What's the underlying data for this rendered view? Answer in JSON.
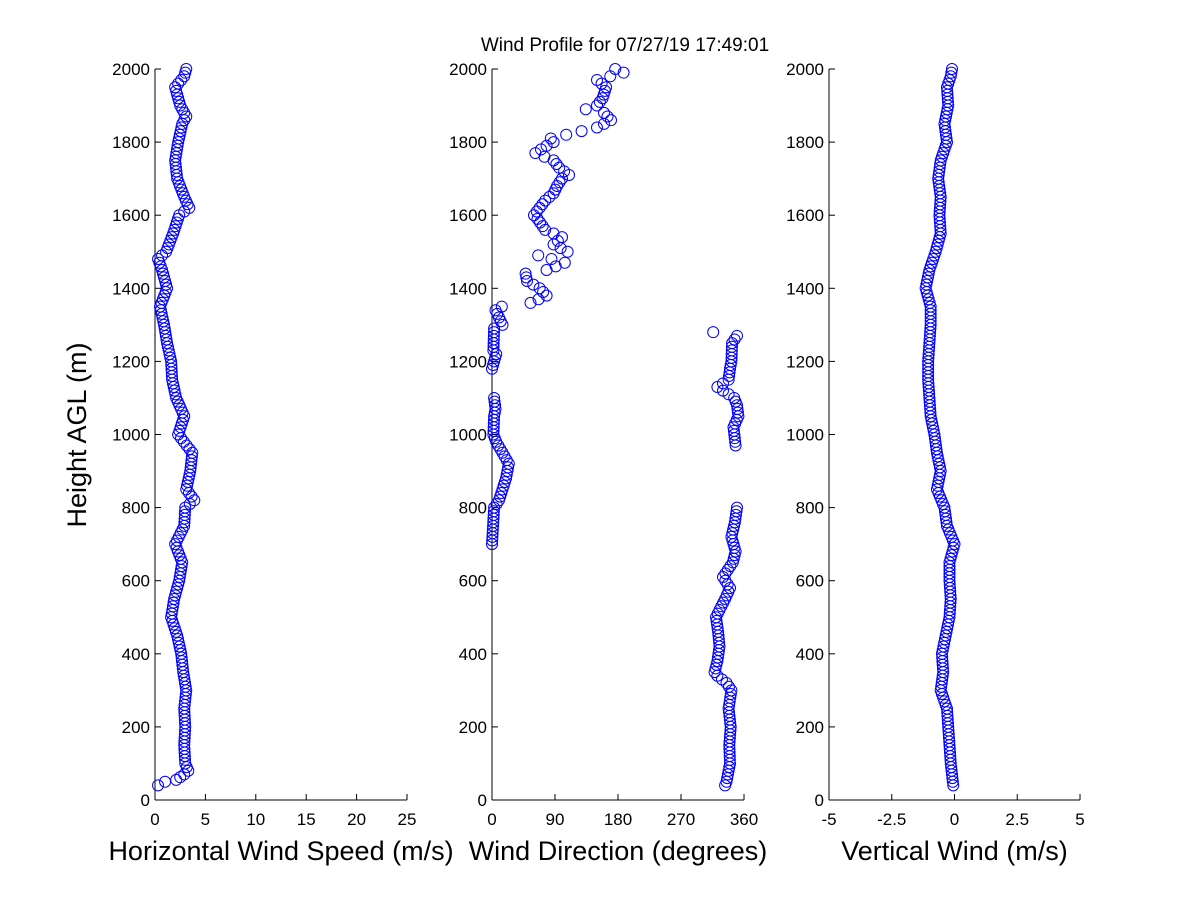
{
  "figure": {
    "title": "Wind Profile for  07/27/19 17:49:01",
    "colors": {
      "marker": "#0000ff",
      "axis": "#000000",
      "background": "#ffffff"
    }
  },
  "chart_data": [
    {
      "type": "scatter",
      "xlabel": "Horizontal Wind Speed (m/s)",
      "ylabel": "Height AGL (m)",
      "xlim": [
        0,
        25
      ],
      "ylim": [
        0,
        2000
      ],
      "xticks": [
        0,
        5,
        10,
        15,
        20,
        25
      ],
      "xtick_labels": [
        "0",
        "5",
        "10",
        "15",
        "20",
        "25"
      ],
      "yticks": [
        0,
        200,
        400,
        600,
        800,
        1000,
        1200,
        1400,
        1600,
        1800,
        2000
      ],
      "ytick_labels": [
        "0",
        "200",
        "400",
        "600",
        "800",
        "1000",
        "1200",
        "1400",
        "1600",
        "1800",
        "2000"
      ],
      "grid": false,
      "marker": "open-circle",
      "profile": [
        [
          40,
          0.3
        ],
        [
          50,
          1.0
        ],
        [
          55,
          2.1
        ],
        [
          70,
          2.9
        ],
        [
          80,
          3.3
        ],
        [
          100,
          3.0
        ],
        [
          150,
          2.9
        ],
        [
          200,
          3.0
        ],
        [
          250,
          2.9
        ],
        [
          300,
          3.1
        ],
        [
          350,
          2.8
        ],
        [
          400,
          2.6
        ],
        [
          450,
          2.2
        ],
        [
          500,
          1.6
        ],
        [
          550,
          1.9
        ],
        [
          600,
          2.4
        ],
        [
          650,
          2.7
        ],
        [
          700,
          2.0
        ],
        [
          750,
          2.9
        ],
        [
          800,
          3.0
        ],
        [
          820,
          3.9
        ],
        [
          850,
          3.1
        ],
        [
          900,
          3.5
        ],
        [
          950,
          3.7
        ],
        [
          1000,
          2.3
        ],
        [
          1050,
          2.9
        ],
        [
          1100,
          2.1
        ],
        [
          1150,
          1.7
        ],
        [
          1200,
          1.6
        ],
        [
          1250,
          1.2
        ],
        [
          1300,
          0.9
        ],
        [
          1350,
          0.5
        ],
        [
          1400,
          1.2
        ],
        [
          1450,
          0.7
        ],
        [
          1480,
          0.3
        ],
        [
          1500,
          1.1
        ],
        [
          1550,
          1.8
        ],
        [
          1600,
          2.4
        ],
        [
          1620,
          3.4
        ],
        [
          1650,
          2.9
        ],
        [
          1700,
          2.2
        ],
        [
          1750,
          2.0
        ],
        [
          1800,
          2.3
        ],
        [
          1850,
          2.7
        ],
        [
          1870,
          3.1
        ],
        [
          1900,
          2.5
        ],
        [
          1950,
          2.0
        ],
        [
          1980,
          2.9
        ],
        [
          2000,
          3.1
        ]
      ]
    },
    {
      "type": "scatter",
      "xlabel": "Wind Direction (degrees)",
      "ylabel": "",
      "xlim": [
        0,
        360
      ],
      "ylim": [
        0,
        2000
      ],
      "xticks": [
        0,
        90,
        180,
        270,
        360
      ],
      "xtick_labels": [
        "0",
        "90",
        "180",
        "270",
        "360"
      ],
      "yticks": [
        0,
        200,
        400,
        600,
        800,
        1000,
        1200,
        1400,
        1600,
        1800,
        2000
      ],
      "ytick_labels": [
        "0",
        "200",
        "400",
        "600",
        "800",
        "1000",
        "1200",
        "1400",
        "1600",
        "1800",
        "2000"
      ],
      "grid": false,
      "marker": "open-circle",
      "profile": [
        [
          40,
          333
        ],
        [
          50,
          335
        ],
        [
          100,
          340
        ],
        [
          150,
          339
        ],
        [
          200,
          341
        ],
        [
          250,
          338
        ],
        [
          300,
          342
        ],
        [
          320,
          335
        ],
        [
          340,
          322
        ],
        [
          350,
          318
        ],
        [
          380,
          322
        ],
        [
          420,
          325
        ],
        [
          460,
          323
        ],
        [
          500,
          320
        ],
        [
          520,
          325
        ],
        [
          550,
          333
        ],
        [
          580,
          340
        ],
        [
          610,
          330
        ],
        [
          650,
          344
        ],
        [
          680,
          348
        ],
        [
          700,
          345
        ],
        [
          720,
          342
        ],
        [
          760,
          347
        ],
        [
          800,
          350
        ]
      ],
      "profile_low_lobe": [
        [
          700,
          0
        ],
        [
          800,
          3
        ],
        [
          820,
          10
        ],
        [
          850,
          15
        ],
        [
          880,
          20
        ],
        [
          920,
          24
        ],
        [
          950,
          15
        ],
        [
          980,
          6
        ],
        [
          1000,
          2
        ],
        [
          1050,
          3
        ],
        [
          1070,
          5
        ],
        [
          1100,
          3
        ]
      ],
      "profile_mid_lobe": [
        [
          970,
          348
        ],
        [
          1020,
          345
        ],
        [
          1050,
          352
        ],
        [
          1080,
          350
        ],
        [
          1100,
          346
        ],
        [
          1130,
          322
        ],
        [
          1150,
          338
        ],
        [
          1180,
          340
        ],
        [
          1200,
          342
        ],
        [
          1250,
          343
        ],
        [
          1270,
          350
        ],
        [
          1280,
          316
        ]
      ],
      "profile_upper": [
        [
          1180,
          0
        ],
        [
          1220,
          6
        ],
        [
          1230,
          2
        ],
        [
          1290,
          3
        ],
        [
          1300,
          15
        ],
        [
          1320,
          10
        ],
        [
          1340,
          5
        ],
        [
          1350,
          14
        ],
        [
          1360,
          55
        ],
        [
          1380,
          78
        ],
        [
          1400,
          68
        ],
        [
          1420,
          50
        ],
        [
          1440,
          48
        ],
        [
          1450,
          78
        ],
        [
          1470,
          104
        ],
        [
          1490,
          66
        ],
        [
          1500,
          108
        ],
        [
          1520,
          88
        ],
        [
          1540,
          100
        ],
        [
          1560,
          76
        ],
        [
          1590,
          65
        ],
        [
          1600,
          60
        ],
        [
          1620,
          68
        ],
        [
          1640,
          76
        ],
        [
          1660,
          88
        ],
        [
          1680,
          93
        ],
        [
          1700,
          100
        ],
        [
          1710,
          110
        ],
        [
          1730,
          96
        ],
        [
          1750,
          88
        ],
        [
          1770,
          62
        ],
        [
          1790,
          78
        ],
        [
          1800,
          88
        ],
        [
          1810,
          84
        ],
        [
          1820,
          106
        ],
        [
          1840,
          150
        ],
        [
          1860,
          170
        ],
        [
          1880,
          160
        ],
        [
          1890,
          134
        ],
        [
          1900,
          150
        ],
        [
          1920,
          158
        ],
        [
          1950,
          163
        ],
        [
          1970,
          150
        ],
        [
          1990,
          188
        ],
        [
          2000,
          176
        ]
      ]
    },
    {
      "type": "scatter",
      "xlabel": "Vertical Wind (m/s)",
      "ylabel": "",
      "xlim": [
        -5,
        5
      ],
      "ylim": [
        0,
        2000
      ],
      "xticks": [
        -5,
        -2.5,
        0,
        2.5,
        5
      ],
      "xtick_labels": [
        "-5",
        "-2.5",
        "0",
        "2.5",
        "5"
      ],
      "yticks": [
        0,
        200,
        400,
        600,
        800,
        1000,
        1200,
        1400,
        1600,
        1800,
        2000
      ],
      "ytick_labels": [
        "0",
        "200",
        "400",
        "600",
        "800",
        "1000",
        "1200",
        "1400",
        "1600",
        "1800",
        "2000"
      ],
      "grid": false,
      "marker": "open-circle",
      "profile": [
        [
          40,
          -0.05
        ],
        [
          100,
          -0.15
        ],
        [
          150,
          -0.2
        ],
        [
          200,
          -0.25
        ],
        [
          250,
          -0.3
        ],
        [
          300,
          -0.55
        ],
        [
          350,
          -0.45
        ],
        [
          400,
          -0.5
        ],
        [
          450,
          -0.35
        ],
        [
          500,
          -0.2
        ],
        [
          550,
          -0.15
        ],
        [
          600,
          -0.2
        ],
        [
          650,
          -0.2
        ],
        [
          700,
          0.0
        ],
        [
          750,
          -0.3
        ],
        [
          800,
          -0.4
        ],
        [
          850,
          -0.7
        ],
        [
          900,
          -0.55
        ],
        [
          950,
          -0.7
        ],
        [
          1000,
          -0.8
        ],
        [
          1050,
          -0.95
        ],
        [
          1100,
          -1.0
        ],
        [
          1150,
          -1.05
        ],
        [
          1200,
          -1.05
        ],
        [
          1250,
          -1.0
        ],
        [
          1300,
          -0.95
        ],
        [
          1350,
          -0.95
        ],
        [
          1400,
          -1.15
        ],
        [
          1450,
          -1.0
        ],
        [
          1500,
          -0.75
        ],
        [
          1550,
          -0.55
        ],
        [
          1600,
          -0.6
        ],
        [
          1650,
          -0.55
        ],
        [
          1700,
          -0.65
        ],
        [
          1750,
          -0.55
        ],
        [
          1800,
          -0.3
        ],
        [
          1850,
          -0.4
        ],
        [
          1900,
          -0.25
        ],
        [
          1950,
          -0.3
        ],
        [
          1980,
          -0.15
        ],
        [
          2000,
          -0.1
        ]
      ]
    }
  ]
}
